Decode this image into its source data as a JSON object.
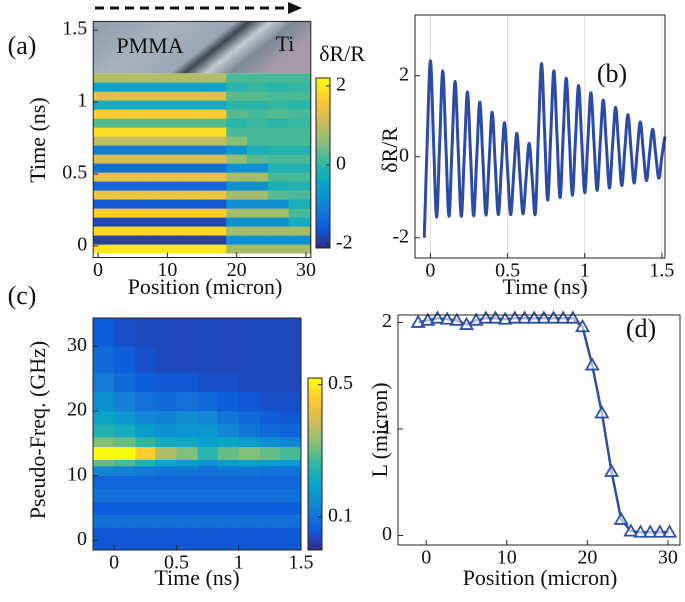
{
  "chart_data": [
    {
      "type": "heatmap",
      "label": "(a)",
      "xlabel": "Position (micron)",
      "ylabel": "Time (ns)",
      "annotations": [
        "PMMA",
        "Ti"
      ],
      "colormap": "parula",
      "clabel": "δR/R",
      "clim": [
        -2.1,
        2.2
      ],
      "cticks": [
        -2,
        0,
        2
      ],
      "xlim": [
        -0.7,
        30.7
      ],
      "xticks": [
        0,
        10,
        20,
        30
      ],
      "ylim": [
        -0.08,
        1.56
      ],
      "yticks": [
        0,
        0.5,
        1,
        1.5
      ],
      "xbins": [
        -0.7,
        2.4,
        5.5,
        8.6,
        11.7,
        14.8,
        18.5,
        21.5,
        24.5,
        27.5,
        30.7
      ],
      "ybins": [
        -0.05,
        0.0125,
        0.075,
        0.1375,
        0.2,
        0.2625,
        0.325,
        0.3875,
        0.45,
        0.5125,
        0.575,
        0.6375,
        0.7,
        0.7625,
        0.825,
        0.8875,
        0.95,
        1.0125,
        1.075,
        1.1375,
        1.2
      ],
      "z": [
        [
          2,
          2,
          2,
          2,
          2,
          2,
          0.8,
          0.8,
          0.8,
          0.8
        ],
        [
          -1.9,
          -1.9,
          -1.9,
          -1.9,
          -1.9,
          -1.9,
          -0.8,
          -0.8,
          -0.8,
          -0.8
        ],
        [
          1.8,
          1.8,
          1.8,
          1.8,
          1.8,
          1.8,
          0.8,
          0.8,
          0.8,
          0.8
        ],
        [
          -1.8,
          -1.8,
          -1.8,
          -1.8,
          -1.8,
          -1.8,
          -0.8,
          -0.8,
          -0.8,
          -0.3
        ],
        [
          1.7,
          1.7,
          1.7,
          1.7,
          1.7,
          1.7,
          0.8,
          0.8,
          0.8,
          0.2
        ],
        [
          -1.6,
          -1.6,
          -1.6,
          -1.6,
          -1.6,
          -1.6,
          -0.8,
          -0.8,
          -0.8,
          -0.2
        ],
        [
          1.5,
          1.5,
          1.5,
          1.5,
          1.5,
          1.5,
          0.8,
          0.8,
          0.3,
          0.2
        ],
        [
          -1.4,
          -1.4,
          -1.4,
          -1.4,
          -1.4,
          -1.4,
          -0.8,
          -0.8,
          -0.2,
          -0.1
        ],
        [
          1.4,
          1.4,
          1.4,
          1.4,
          1.4,
          1.4,
          0.8,
          0.8,
          0.2,
          0.2
        ],
        [
          -1.3,
          -1.3,
          -1.3,
          -1.3,
          -1.3,
          -1.3,
          -0.8,
          -0.8,
          -0.1,
          -0.1
        ],
        [
          1.2,
          1.2,
          1.2,
          1.2,
          1.2,
          1.2,
          0.7,
          0.3,
          0.2,
          0.2
        ],
        [
          -1.1,
          -1.1,
          -1.1,
          -1.1,
          -1.1,
          -1.1,
          -0.7,
          -0.2,
          -0.1,
          -0.1
        ],
        [
          1,
          1,
          1,
          1,
          1,
          1,
          0.6,
          0.2,
          0.2,
          0.2
        ],
        [
          1.9,
          1.9,
          1.9,
          1.9,
          1.9,
          1.9,
          0.2,
          0.2,
          0.2,
          0.2
        ],
        [
          0.3,
          0.3,
          0.3,
          0.3,
          0.3,
          0.3,
          0,
          0.1,
          0,
          0.1
        ],
        [
          1.7,
          1.7,
          1.7,
          1.7,
          1.7,
          1.7,
          0.3,
          0.2,
          0.3,
          0.2
        ],
        [
          -0.3,
          -0.3,
          -0.3,
          -0.3,
          -0.3,
          -0.3,
          0,
          0,
          0.1,
          0
        ],
        [
          1.3,
          1.3,
          1.3,
          1.3,
          1.3,
          1.3,
          0.3,
          0.3,
          0.2,
          0.2
        ],
        [
          -0.5,
          -0.5,
          -0.5,
          -0.5,
          -0.5,
          -0.5,
          0,
          0.1,
          0,
          0.1
        ],
        [
          0.9,
          0.9,
          0.9,
          0.9,
          0.9,
          0.9,
          0.2,
          0.2,
          0.2,
          0.2
        ]
      ]
    },
    {
      "type": "line",
      "label": "(b)",
      "xlabel": "Time (ns)",
      "ylabel": "δR/R",
      "color": "#2b4ba6",
      "grid": true,
      "xlim": [
        -0.1,
        1.52
      ],
      "xticks": [
        0,
        0.5,
        1,
        1.5
      ],
      "ylim": [
        -2.5,
        3.5
      ],
      "yticks": [
        -2,
        0,
        2
      ],
      "x": [
        -0.04,
        -0.02,
        0,
        0.02,
        0.04,
        0.06,
        0.08,
        0.1,
        0.12,
        0.14,
        0.16,
        0.18,
        0.2,
        0.22,
        0.24,
        0.26,
        0.28,
        0.3,
        0.32,
        0.34,
        0.36,
        0.38,
        0.4,
        0.42,
        0.44,
        0.46,
        0.48,
        0.5,
        0.52,
        0.54,
        0.56,
        0.58,
        0.6,
        0.62,
        0.64,
        0.66,
        0.68,
        0.7,
        0.72,
        0.74,
        0.76,
        0.78,
        0.8,
        0.82,
        0.84,
        0.86,
        0.88,
        0.9,
        0.92,
        0.94,
        0.96,
        0.98,
        1,
        1.02,
        1.04,
        1.06,
        1.08,
        1.1,
        1.12,
        1.14,
        1.16,
        1.18,
        1.2,
        1.22,
        1.24,
        1.26,
        1.28,
        1.3,
        1.32,
        1.34,
        1.36,
        1.38,
        1.4,
        1.42,
        1.44,
        1.46,
        1.48,
        1.5,
        1.52
      ],
      "values": [
        -2,
        0.47,
        2.37,
        0.41,
        -1.49,
        0.35,
        2.12,
        0.29,
        -1.47,
        0.23,
        1.86,
        0.16,
        -1.47,
        0.1,
        1.6,
        0.04,
        -1.46,
        -0.02,
        1.35,
        -0.08,
        -1.44,
        -0.14,
        1.1,
        -0.2,
        -1.43,
        -0.26,
        0.84,
        -0.33,
        -1.43,
        -0.39,
        0.58,
        -0.45,
        -1.41,
        -0.51,
        0.33,
        -0.57,
        -1.4,
        0.6,
        2.3,
        0.59,
        -1.07,
        0.56,
        2.12,
        0.53,
        -1.01,
        0.5,
        1.94,
        0.47,
        -0.95,
        0.44,
        1.76,
        0.41,
        -0.89,
        0.38,
        1.58,
        0.35,
        -0.83,
        0.32,
        1.4,
        0.29,
        -0.77,
        0.26,
        1.22,
        0.23,
        -0.71,
        0.2,
        1.04,
        0.17,
        -0.65,
        0.14,
        0.86,
        0.11,
        -0.59,
        0.08,
        0.68,
        0.05,
        -0.53,
        0.02,
        0.5
      ]
    },
    {
      "type": "heatmap",
      "label": "(c)",
      "xlabel": "Time (ns)",
      "ylabel": "Pseudo-Freq. (GHz)",
      "colormap": "parula",
      "clim": [
        0,
        0.52
      ],
      "cticks": [
        0.1,
        0.5
      ],
      "xlim": [
        -0.17,
        1.5
      ],
      "xticks": [
        0,
        0.5,
        1,
        1.5
      ],
      "ylim": [
        -1.5,
        34.4
      ],
      "yticks": [
        0,
        10,
        20,
        30
      ],
      "xbins": [
        -0.17,
        0,
        0.17,
        0.33,
        0.5,
        0.67,
        0.83,
        1,
        1.17,
        1.33,
        1.5
      ],
      "ybins": [
        -1.5,
        2,
        4,
        6,
        8,
        10,
        11.5,
        12.5,
        14.5,
        16,
        18,
        20,
        23,
        26,
        30,
        34.4
      ],
      "z": [
        [
          0.06,
          0.06,
          0.06,
          0.06,
          0.06,
          0.06,
          0.06,
          0.06,
          0.06,
          0.06
        ],
        [
          0.1,
          0.1,
          0.1,
          0.1,
          0.1,
          0.1,
          0.1,
          0.1,
          0.1,
          0.1
        ],
        [
          0.07,
          0.07,
          0.07,
          0.07,
          0.07,
          0.07,
          0.07,
          0.07,
          0.07,
          0.07
        ],
        [
          0.1,
          0.1,
          0.1,
          0.1,
          0.1,
          0.1,
          0.1,
          0.1,
          0.1,
          0.1
        ],
        [
          0.08,
          0.08,
          0.08,
          0.08,
          0.08,
          0.08,
          0.08,
          0.08,
          0.08,
          0.08
        ],
        [
          0.14,
          0.13,
          0.12,
          0.11,
          0.11,
          0.1,
          0.11,
          0.11,
          0.1,
          0.1
        ],
        [
          0.3,
          0.28,
          0.24,
          0.2,
          0.18,
          0.16,
          0.18,
          0.19,
          0.18,
          0.17
        ],
        [
          0.54,
          0.53,
          0.46,
          0.36,
          0.32,
          0.25,
          0.3,
          0.32,
          0.3,
          0.28
        ],
        [
          0.32,
          0.3,
          0.26,
          0.22,
          0.21,
          0.19,
          0.2,
          0.18,
          0.16,
          0.14
        ],
        [
          0.24,
          0.22,
          0.18,
          0.16,
          0.17,
          0.17,
          0.14,
          0.11,
          0.09,
          0.08
        ],
        [
          0.2,
          0.17,
          0.14,
          0.13,
          0.15,
          0.14,
          0.11,
          0.09,
          0.07,
          0.06
        ],
        [
          0.16,
          0.13,
          0.1,
          0.09,
          0.1,
          0.09,
          0.07,
          0.06,
          0.05,
          0.05
        ],
        [
          0.12,
          0.09,
          0.07,
          0.06,
          0.06,
          0.05,
          0.05,
          0.04,
          0.04,
          0.04
        ],
        [
          0.09,
          0.07,
          0.05,
          0.04,
          0.04,
          0.04,
          0.04,
          0.04,
          0.04,
          0.04
        ],
        [
          0.07,
          0.05,
          0.04,
          0.04,
          0.04,
          0.04,
          0.04,
          0.04,
          0.04,
          0.04
        ]
      ]
    },
    {
      "type": "line",
      "label": "(d)",
      "xlabel": "Position (micron)",
      "ylabel": "L (micron)",
      "color": "#2e4fa3",
      "marker": "triangle",
      "xlim": [
        -3.5,
        31.5
      ],
      "xticks": [
        0,
        10,
        20,
        30
      ],
      "ylim": [
        -0.09,
        2.07
      ],
      "yticks": [
        0,
        1,
        2
      ],
      "x": [
        -1,
        0.2,
        1.4,
        2.6,
        3.8,
        5,
        6.2,
        7.4,
        8.6,
        9.8,
        11,
        12.2,
        13.4,
        14.6,
        15.8,
        17,
        18.2,
        19.4,
        20.6,
        21.8,
        23,
        24.2,
        25.4,
        26.6,
        27.8,
        29,
        30.2
      ],
      "values": [
        2,
        2.02,
        2.04,
        2.03,
        2.02,
        1.98,
        2.02,
        2.04,
        2.04,
        2.03,
        2.04,
        2.04,
        2.04,
        2.04,
        2.04,
        2.04,
        2.04,
        1.96,
        1.6,
        1.15,
        0.6,
        0.15,
        0.04,
        0.03,
        0.03,
        0.03,
        0.03
      ]
    }
  ]
}
